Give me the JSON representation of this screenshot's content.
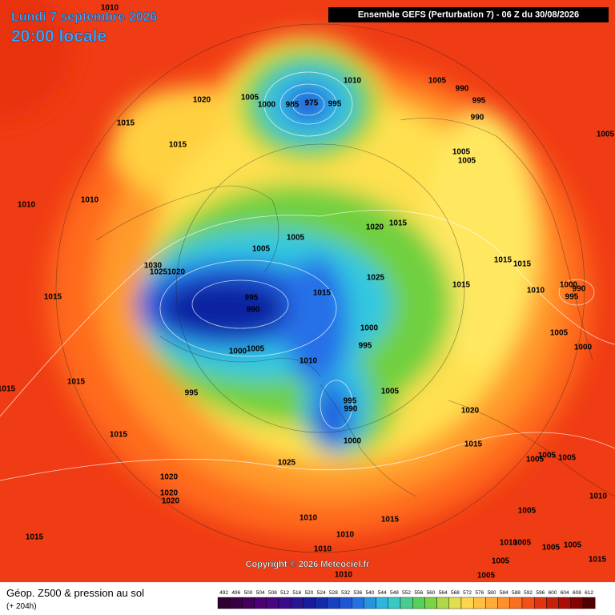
{
  "header": {
    "date": "Lundi 7 septembre 2026",
    "time": "20:00 locale",
    "model": "Ensemble GEFS  (Perturbation 7)  -  06 Z du 30/08/2026"
  },
  "copyright": "Copyright © 2026 Meteociel.fr",
  "footer": {
    "title": "Géop. Z500 & pression au sol",
    "subtitle": "(+ 204h)"
  },
  "scale": {
    "labels": [
      492,
      496,
      500,
      504,
      508,
      512,
      516,
      520,
      524,
      528,
      532,
      536,
      540,
      544,
      548,
      552,
      556,
      560,
      564,
      568,
      572,
      576,
      580,
      584,
      588,
      592,
      596,
      600,
      604,
      608,
      612
    ]
  },
  "isobars": [
    1010,
    1020,
    1015,
    1015,
    1010,
    1010,
    1005,
    1000,
    985,
    975,
    995,
    1010,
    1005,
    990,
    995,
    990,
    1005,
    1005,
    1005,
    1005,
    1005,
    1020,
    1015,
    1030,
    1025,
    1020,
    1025,
    1015,
    1015,
    1015,
    1010,
    1000,
    990,
    995,
    995,
    990,
    1015,
    1015,
    1000,
    995,
    1000,
    1005,
    1010,
    1005,
    1000,
    1015,
    1015,
    995,
    995,
    990,
    1005,
    1020,
    1015,
    1000,
    1015,
    1025,
    1005,
    1005,
    1005,
    1020,
    1020,
    1020,
    1010,
    1005,
    1010,
    1015,
    1015,
    1010,
    1010,
    1005,
    1005,
    1005,
    1010,
    1005,
    1015,
    1010,
    1005
  ]
}
